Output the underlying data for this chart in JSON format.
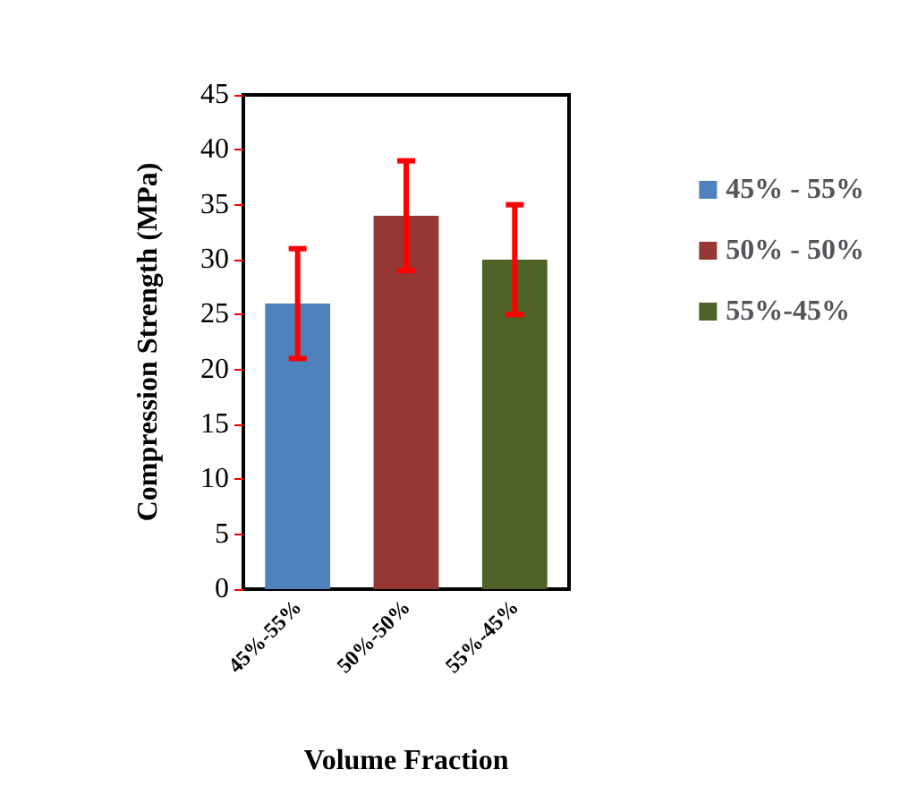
{
  "chart_data": {
    "type": "bar",
    "xlabel": "Volume Fraction",
    "ylabel": "Compression Strength (MPa)",
    "categories": [
      "45%-55%",
      "50%-50%",
      "55%-45%"
    ],
    "stacked": true,
    "series": [
      {
        "name": "45% - 55%",
        "color": "#4f81bd",
        "values": [
          26,
          null,
          null
        ],
        "errors": [
          5,
          null,
          null
        ]
      },
      {
        "name": "50% - 50%",
        "color": "#953735",
        "values": [
          null,
          34,
          null
        ],
        "errors": [
          null,
          5,
          null
        ]
      },
      {
        "name": "55%-45%",
        "color": "#4f6228",
        "values": [
          null,
          null,
          30
        ],
        "errors": [
          null,
          null,
          5
        ]
      }
    ],
    "ylim": [
      0,
      45
    ],
    "yticks": [
      0,
      5,
      10,
      15,
      20,
      25,
      30,
      35,
      40,
      45
    ],
    "grid": false,
    "legend": "right"
  }
}
